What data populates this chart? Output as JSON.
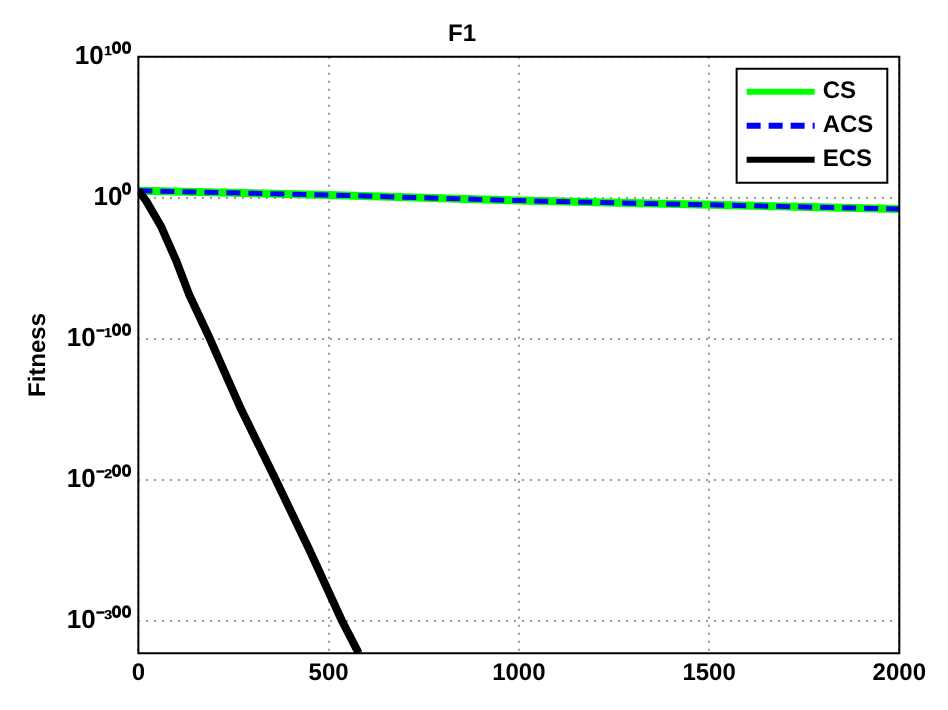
{
  "chart_data": {
    "type": "line",
    "title": "F1",
    "ylabel": "Fitness",
    "log": "y",
    "grid": true,
    "legend": "top right",
    "xlim": [
      0,
      2000
    ],
    "xticks": [
      0,
      500,
      1000,
      1500,
      2000
    ],
    "ylim": [
      1e-323,
      1e+100
    ],
    "yticks": [
      {
        "value": 1e+100,
        "label": "10¹⁰⁰"
      },
      {
        "value": 1,
        "label": "10⁰"
      },
      {
        "value": 1e-100,
        "label": "10⁻¹⁰⁰"
      },
      {
        "value": 1e-200,
        "label": "10⁻²⁰⁰"
      },
      {
        "value": 1e-300,
        "label": "10⁻³⁰⁰"
      }
    ],
    "marker": "none",
    "series": [
      {
        "name": "CS",
        "color": "#00ff00",
        "line_style": "solid",
        "x": [
          0,
          500,
          1000,
          1500,
          2000
        ],
        "values": [
          100000.0,
          100.0,
          0.01,
          1e-05,
          1e-08
        ]
      },
      {
        "name": "ACS",
        "color": "#0000ff",
        "line_style": "dashed",
        "x": [
          0,
          500,
          1000,
          1500,
          2000
        ],
        "values": [
          100000.0,
          100.0,
          0.01,
          1e-05,
          1e-08
        ]
      },
      {
        "name": "ECS",
        "color": "#000000",
        "line_style": "solid",
        "x": [
          0,
          20,
          59,
          100,
          134,
          188,
          270,
          361,
          450,
          535,
          579
        ],
        "values": [
          100000.0,
          0.01,
          1e-20,
          1e-45,
          1e-69,
          1e-100,
          1e-150,
          1e-200,
          1e-250,
          1e-300,
          1e-323
        ]
      }
    ]
  }
}
